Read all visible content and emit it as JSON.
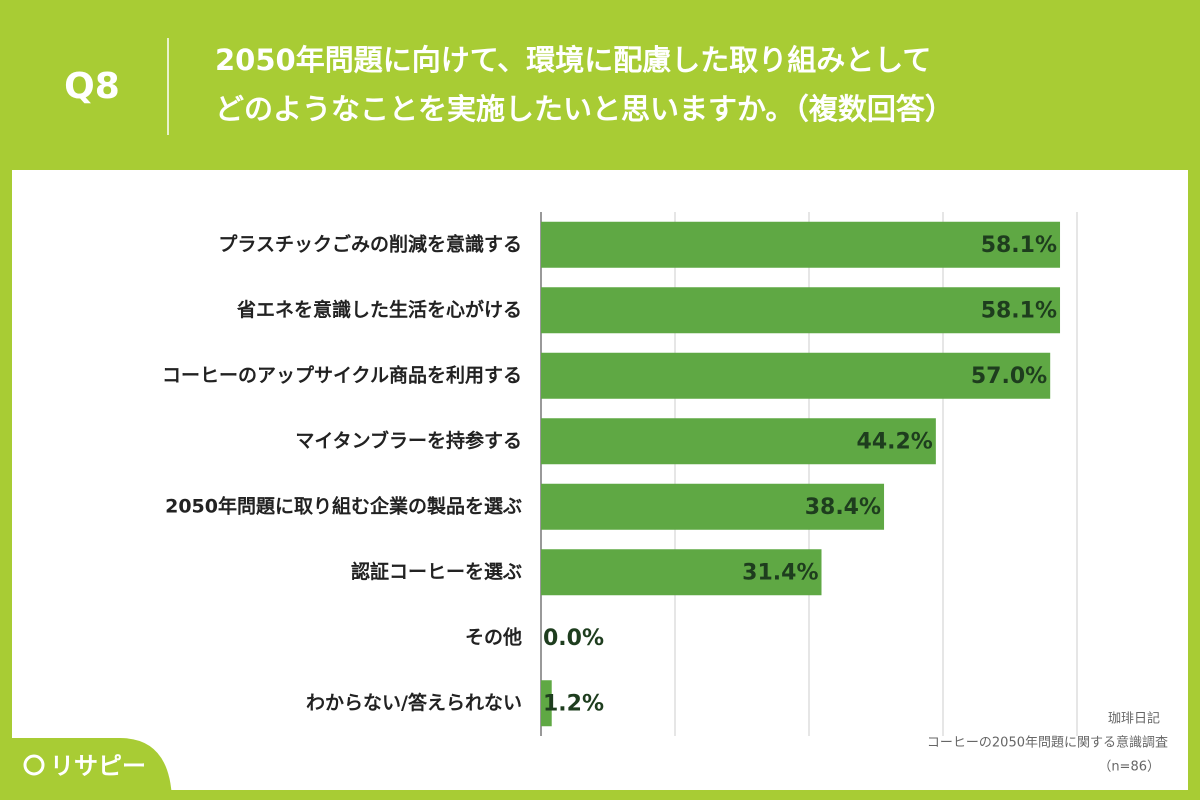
{
  "header": {
    "number": "Q8",
    "title_lines": [
      "2050年問題に向けて、環境に配慮した取り組みとして",
      "どのようなことを実施したいと思いますか。（複数回答）"
    ]
  },
  "chart_data": {
    "type": "bar",
    "orientation": "horizontal",
    "categories": [
      "プラスチックごみの削減を意識する",
      "省エネを意識した生活を心がける",
      "コーヒーのアップサイクル商品を利用する",
      "マイタンブラーを持参する",
      "2050年問題に取り組む企業の製品を選ぶ",
      "認証コーヒーを選ぶ",
      "その他",
      "わからない/答えられない"
    ],
    "values": [
      58.1,
      58.1,
      57.0,
      44.2,
      38.4,
      31.4,
      0.0,
      1.2
    ],
    "value_labels": [
      "58.1%",
      "58.1%",
      "57.0%",
      "44.2%",
      "38.4%",
      "31.4%",
      "0.0%",
      "1.2%"
    ],
    "color": "#5fa844",
    "xlim": [
      0,
      60
    ],
    "xticks": [
      0,
      15,
      30,
      45,
      60
    ],
    "grid": true
  },
  "source": {
    "name": "珈琲日記",
    "survey": "コーヒーの2050年問題に関する意識調査",
    "sample": "（n=86）"
  },
  "logo": "リサピー"
}
